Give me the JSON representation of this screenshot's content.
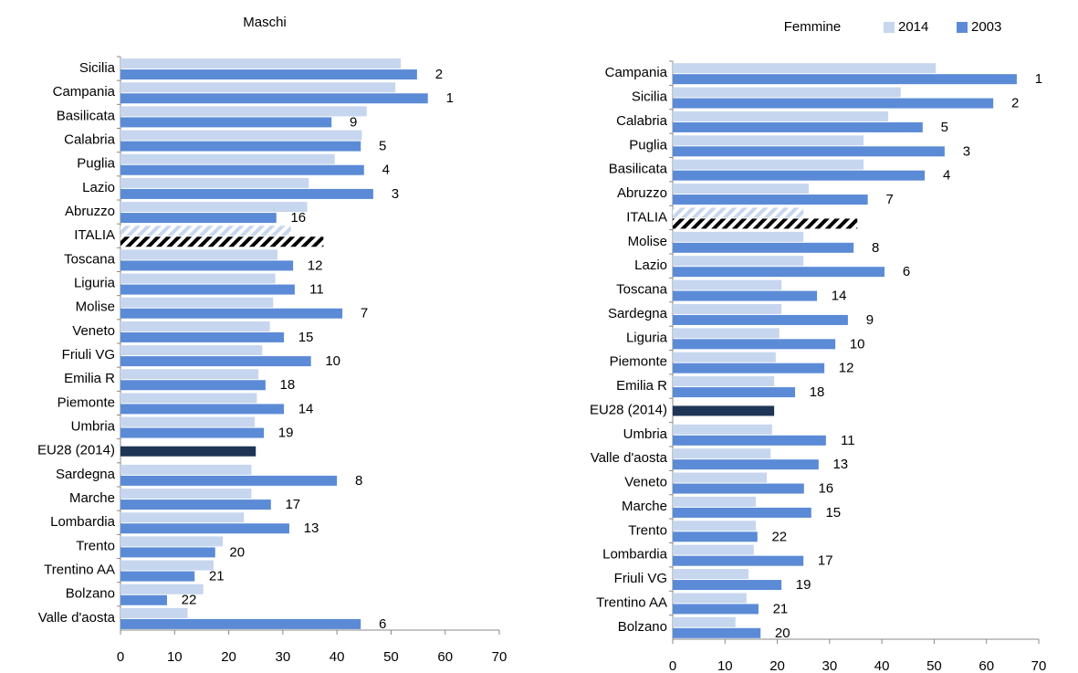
{
  "chart_data": [
    {
      "type": "bar",
      "orientation": "horizontal",
      "title": "Maschi",
      "categories": [
        "Sicilia",
        "Campania",
        "Basilicata",
        "Calabria",
        "Puglia",
        "Lazio",
        "Abruzzo",
        "ITALIA",
        "Toscana",
        "Liguria",
        "Molise",
        "Veneto",
        "Friuli VG",
        "Emilia R",
        "Piemonte",
        "Umbria",
        "EU28 (2014)",
        "Sardegna",
        "Marche",
        "Lombardia",
        "Trento",
        "Trentino AA",
        "Bolzano",
        "Valle d'aosta"
      ],
      "series": [
        {
          "color": "#c6d6ee",
          "values": [
            51.8,
            50.8,
            45.5,
            44.6,
            39.6,
            34.8,
            34.5,
            31.5,
            29,
            28.6,
            28.2,
            27.6,
            26.2,
            25.5,
            25.2,
            24.8,
            25,
            24.2,
            24.2,
            22.8,
            18.9,
            17.2,
            15.3,
            12.4
          ]
        },
        {
          "color": "#5b8bd6",
          "values": [
            54.8,
            56.8,
            39,
            44.4,
            45,
            46.7,
            28.8,
            37.5,
            31.9,
            32.2,
            41,
            30.2,
            35.2,
            26.8,
            30.2,
            26.5,
            null,
            40,
            27.8,
            31.2,
            17.5,
            13.7,
            8.6,
            44.4
          ]
        }
      ],
      "data_labels": [
        2,
        1,
        9,
        5,
        4,
        3,
        16,
        null,
        12,
        11,
        7,
        15,
        10,
        18,
        14,
        19,
        null,
        8,
        17,
        13,
        20,
        21,
        22,
        6
      ],
      "bar_styles": [
        "normal",
        "normal",
        "normal",
        "normal",
        "normal",
        "normal",
        "normal",
        "hatch",
        "normal",
        "normal",
        "normal",
        "normal",
        "normal",
        "normal",
        "normal",
        "normal",
        "solid",
        "normal",
        "normal",
        "normal",
        "normal",
        "normal",
        "normal",
        "normal"
      ],
      "solid_color": "#1f3556",
      "xlim": [
        0,
        70
      ],
      "xticks": [
        0,
        10,
        20,
        30,
        40,
        50,
        60,
        70
      ],
      "legend": false
    },
    {
      "type": "bar",
      "orientation": "horizontal",
      "title": "Femmine",
      "categories": [
        "Campania",
        "Sicilia",
        "Calabria",
        "Puglia",
        "Basilicata",
        "Abruzzo",
        "ITALIA",
        "Molise",
        "Lazio",
        "Toscana",
        "Sardegna",
        "Liguria",
        "Piemonte",
        "Emilia R",
        "EU28 (2014)",
        "Umbria",
        "Valle d'aosta",
        "Veneto",
        "Marche",
        "Trento",
        "Lombardia",
        "Friuli VG",
        "Trentino AA",
        "Bolzano"
      ],
      "series": [
        {
          "name": "2014",
          "color": "#c6d6ee",
          "values": [
            50.3,
            43.6,
            41.2,
            36.5,
            36.5,
            26,
            25,
            25,
            25,
            20.8,
            20.8,
            20.4,
            19.7,
            19.4,
            19.4,
            19,
            18.7,
            18,
            15.9,
            15.9,
            15.5,
            14.5,
            14.1,
            12
          ]
        },
        {
          "name": "2003",
          "color": "#5b8bd6",
          "values": [
            65.8,
            61.3,
            47.8,
            52,
            48.2,
            37.3,
            35.3,
            34.6,
            40.5,
            27.6,
            33.5,
            31.1,
            29,
            23.4,
            null,
            29.3,
            27.9,
            25.1,
            26.5,
            16.2,
            25,
            20.8,
            16.4,
            16.8
          ]
        }
      ],
      "data_labels": [
        1,
        2,
        5,
        3,
        4,
        7,
        null,
        8,
        6,
        14,
        9,
        10,
        12,
        18,
        null,
        11,
        13,
        16,
        15,
        22,
        17,
        19,
        21,
        20
      ],
      "bar_styles": [
        "normal",
        "normal",
        "normal",
        "normal",
        "normal",
        "normal",
        "hatch",
        "normal",
        "normal",
        "normal",
        "normal",
        "normal",
        "normal",
        "normal",
        "solid",
        "normal",
        "normal",
        "normal",
        "normal",
        "normal",
        "normal",
        "normal",
        "normal",
        "normal"
      ],
      "solid_color": "#1f3556",
      "xlim": [
        0,
        70
      ],
      "xticks": [
        0,
        10,
        20,
        30,
        40,
        50,
        60,
        70
      ],
      "legend": true
    }
  ]
}
